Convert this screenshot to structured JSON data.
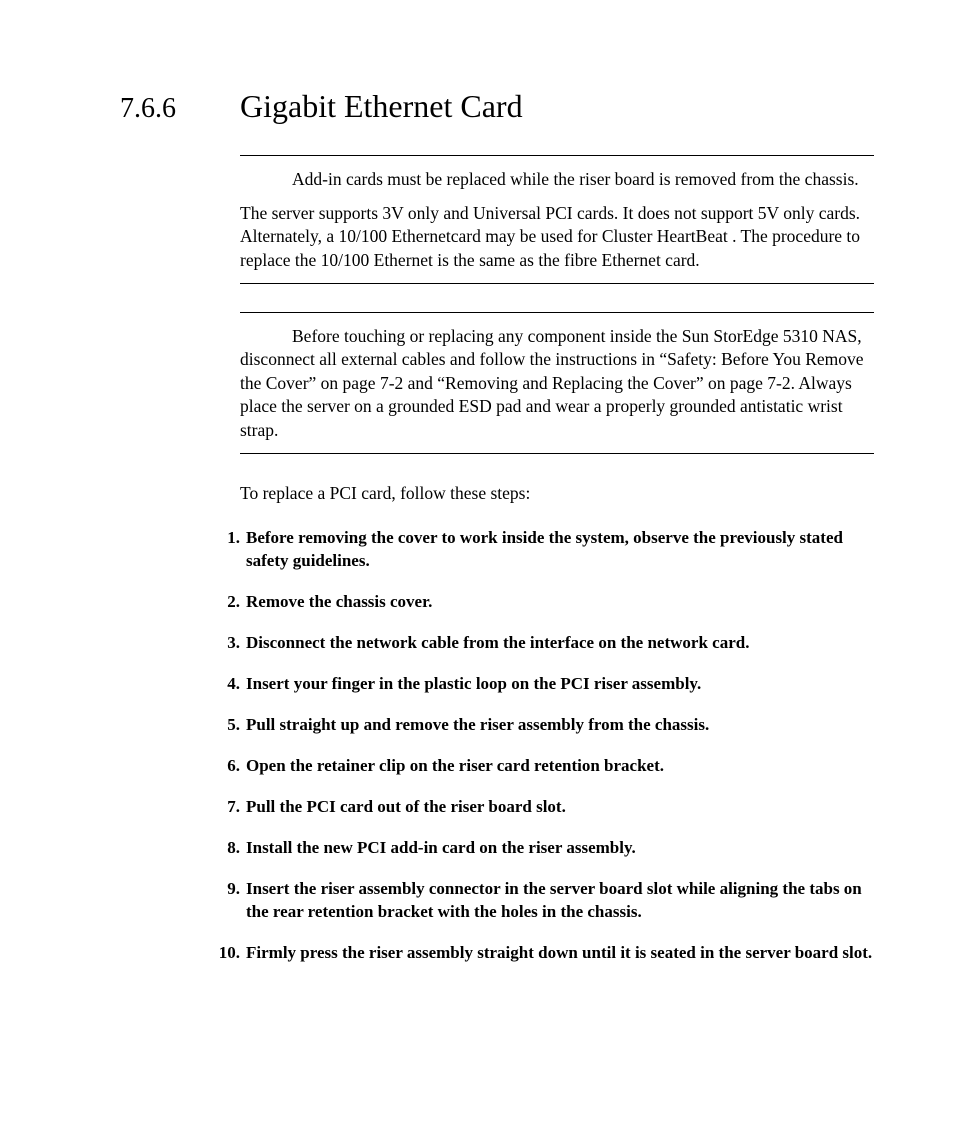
{
  "colors": {
    "background": "#ffffff",
    "text": "#000000",
    "rule": "#000000"
  },
  "typography": {
    "body_font_family": "Palatino Linotype, Book Antiqua, Palatino, serif",
    "section_number_fontsize": 28,
    "section_title_fontsize": 32,
    "body_fontsize": 17.5,
    "step_fontsize": 17,
    "line_height": 1.35,
    "step_font_weight": 700
  },
  "section": {
    "number": "7.6.6",
    "title": "Gigabit Ethernet Card"
  },
  "note1": {
    "p1": "Add-in cards must be replaced while the riser board is removed from the chassis.",
    "p2": "The server supports 3V only and Universal PCI cards. It does not support 5V only cards. Alternately, a 10/100 Ethernetcard may be used for Cluster HeartBeat . The procedure to replace the 10/100 Ethernet is the same as the fibre Ethernet card."
  },
  "note2": {
    "p1": "Before touching or replacing any component inside the Sun StorEdge 5310 NAS, disconnect all external cables and follow the instructions in “Safety: Before You Remove the Cover” on page 7-2 and “Removing and Replacing the Cover” on page 7-2. Always place the server on a grounded ESD pad and wear a properly grounded antistatic wrist strap."
  },
  "intro": "To replace a PCI card, follow these steps:",
  "steps": [
    "Before removing the cover to work inside the system, observe the previously stated safety guidelines.",
    "Remove the chassis cover.",
    "Disconnect the network cable from the interface on the network card.",
    "Insert your finger in the plastic loop on the PCI riser assembly.",
    "Pull straight up and remove the riser assembly from the chassis.",
    "Open the retainer clip on the riser card retention bracket.",
    "Pull the PCI card out of the riser board slot.",
    "Install the new PCI add-in card on the riser assembly.",
    "Insert the riser assembly connector in the server board slot while aligning the tabs on the rear retention bracket with the holes in the chassis.",
    "Firmly press the riser assembly straight down until it is seated in the server board slot."
  ]
}
